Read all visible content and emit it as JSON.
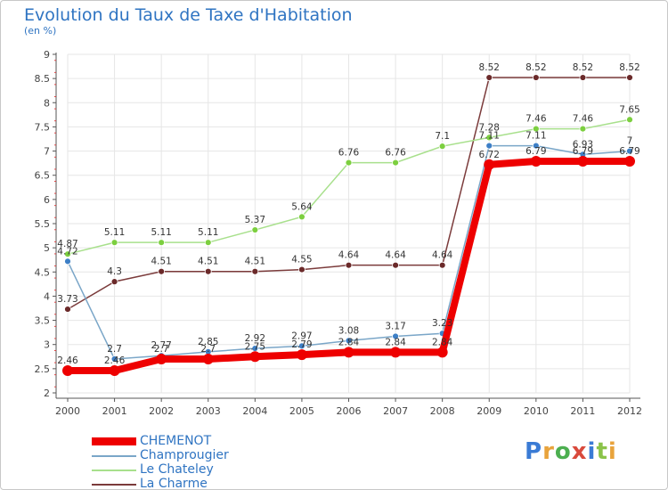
{
  "header": {
    "title": "Evolution du Taux de Taxe d'Habitation",
    "subtitle": "(en %)"
  },
  "brand": {
    "logo_text": "Proxiti",
    "logo_letters": [
      "P",
      "r",
      "o",
      "x",
      "i",
      "t",
      "i"
    ],
    "logo_colors": [
      "#3a7bd5",
      "#e8a33c",
      "#4caf50",
      "#d94a3c",
      "#3a7bd5",
      "#8bc34a",
      "#e8a33c"
    ]
  },
  "chart_data": {
    "type": "line",
    "title": "Evolution du Taux de Taxe d'Habitation",
    "subtitle": "(en %)",
    "x": [
      "2000",
      "2001",
      "2002",
      "2003",
      "2004",
      "2005",
      "2006",
      "2007",
      "2008",
      "2009",
      "2010",
      "2011",
      "2012"
    ],
    "ylim": [
      2,
      9
    ],
    "yticks": [
      "2",
      "2.5",
      "3",
      "3.5",
      "4",
      "4.5",
      "5",
      "5.5",
      "6",
      "6.5",
      "7",
      "7.5",
      "8",
      "8.5",
      "9"
    ],
    "grid": true,
    "legend_position": "bottom-left",
    "series": [
      {
        "name": "CHEMENOT",
        "color": "#ee0000",
        "thick": true,
        "values": [
          2.46,
          2.46,
          2.7,
          2.7,
          2.75,
          2.79,
          2.84,
          2.84,
          2.84,
          6.72,
          6.79,
          6.79,
          6.79
        ],
        "labels": [
          "2.46",
          "2.46",
          "2.7",
          "2.7",
          "2.75",
          "2.79",
          "2.84",
          "2.84",
          "2.84",
          "6.72",
          "6.79",
          "6.79",
          "6.79"
        ]
      },
      {
        "name": "Champrougier",
        "color": "#7aa6c8",
        "marker": "#3d7fc6",
        "values": [
          4.72,
          2.7,
          2.77,
          2.85,
          2.92,
          2.97,
          3.08,
          3.17,
          3.23,
          7.11,
          7.11,
          6.93,
          7.0
        ],
        "labels": [
          "4.72",
          "2.7",
          "2.77",
          "2.85",
          "2.92",
          "2.97",
          "3.08",
          "3.17",
          "3.23",
          "7.11",
          "7.11",
          "6.93",
          "7"
        ]
      },
      {
        "name": "Le Chateley",
        "color": "#a8e08c",
        "marker": "#7ccf3f",
        "values": [
          4.87,
          5.11,
          5.11,
          5.11,
          5.37,
          5.64,
          6.76,
          6.76,
          7.1,
          7.28,
          7.46,
          7.46,
          7.65
        ],
        "labels": [
          "4.87",
          "5.11",
          "5.11",
          "5.11",
          "5.37",
          "5.64",
          "6.76",
          "6.76",
          "7.1",
          "7.28",
          "7.46",
          "7.46",
          "7.65"
        ]
      },
      {
        "name": "La Charme",
        "color": "#7b3b3b",
        "marker": "#6b2a2a",
        "values": [
          3.73,
          4.3,
          4.51,
          4.51,
          4.51,
          4.55,
          4.64,
          4.64,
          4.64,
          8.52,
          8.52,
          8.52,
          8.52
        ],
        "labels": [
          "3.73",
          "4.3",
          "4.51",
          "4.51",
          "4.51",
          "4.55",
          "4.64",
          "4.64",
          "4.64",
          "8.52",
          "8.52",
          "8.52",
          "8.52"
        ]
      }
    ]
  }
}
